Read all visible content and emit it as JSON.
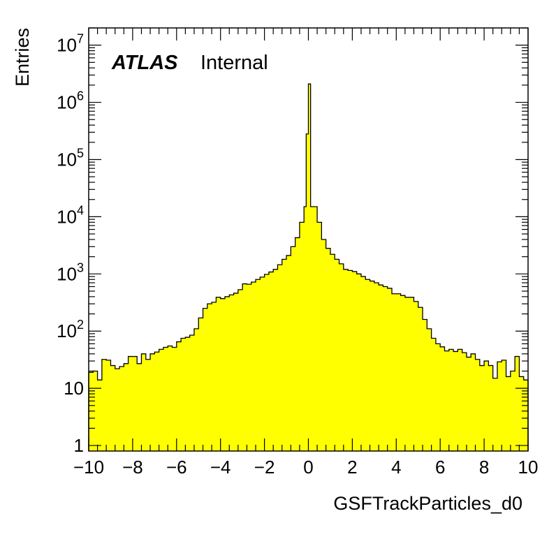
{
  "chart_data": {
    "type": "histogram",
    "title": "",
    "xlabel": "GSFTrackParticles_d0",
    "ylabel": "Entries",
    "xlim": [
      -10,
      10
    ],
    "ylim": [
      0.8,
      20000000
    ],
    "yscale": "log",
    "x_tick_labels": [
      "−10",
      "−8",
      "−6",
      "−4",
      "−2",
      "0",
      "2",
      "4",
      "6",
      "8",
      "10"
    ],
    "y_tick_labels": [
      {
        "value": 1,
        "base": "1",
        "exp": ""
      },
      {
        "value": 10,
        "base": "10",
        "exp": ""
      },
      {
        "value": 100,
        "base": "10",
        "exp": "2"
      },
      {
        "value": 1000,
        "base": "10",
        "exp": "3"
      },
      {
        "value": 10000,
        "base": "10",
        "exp": "4"
      },
      {
        "value": 100000,
        "base": "10",
        "exp": "5"
      },
      {
        "value": 1000000,
        "base": "10",
        "exp": "6"
      },
      {
        "value": 10000000,
        "base": "10",
        "exp": "7"
      }
    ],
    "bin_width": 0.2,
    "fill_color": "#ffff00",
    "line_color": "#000000",
    "grid": false,
    "label": {
      "experiment": "ATLAS",
      "status": "Internal",
      "position": "top-left"
    },
    "bins": [
      {
        "x0": -10.0,
        "y": 19
      },
      {
        "x0": -9.8,
        "y": 20
      },
      {
        "x0": -9.6,
        "y": 14
      },
      {
        "x0": -9.4,
        "y": 32
      },
      {
        "x0": -9.2,
        "y": 31
      },
      {
        "x0": -9.0,
        "y": 25
      },
      {
        "x0": -8.8,
        "y": 22
      },
      {
        "x0": -8.6,
        "y": 24
      },
      {
        "x0": -8.4,
        "y": 27
      },
      {
        "x0": -8.2,
        "y": 36
      },
      {
        "x0": -8.0,
        "y": 36
      },
      {
        "x0": -7.8,
        "y": 27
      },
      {
        "x0": -7.6,
        "y": 40
      },
      {
        "x0": -7.4,
        "y": 32
      },
      {
        "x0": -7.2,
        "y": 40
      },
      {
        "x0": -7.0,
        "y": 43
      },
      {
        "x0": -6.8,
        "y": 48
      },
      {
        "x0": -6.6,
        "y": 52
      },
      {
        "x0": -6.4,
        "y": 55
      },
      {
        "x0": -6.2,
        "y": 52
      },
      {
        "x0": -6.0,
        "y": 65
      },
      {
        "x0": -5.8,
        "y": 75
      },
      {
        "x0": -5.6,
        "y": 78
      },
      {
        "x0": -5.4,
        "y": 85
      },
      {
        "x0": -5.2,
        "y": 110
      },
      {
        "x0": -5.0,
        "y": 170
      },
      {
        "x0": -4.8,
        "y": 250
      },
      {
        "x0": -4.6,
        "y": 300
      },
      {
        "x0": -4.4,
        "y": 320
      },
      {
        "x0": -4.2,
        "y": 390
      },
      {
        "x0": -4.0,
        "y": 370
      },
      {
        "x0": -3.8,
        "y": 400
      },
      {
        "x0": -3.6,
        "y": 430
      },
      {
        "x0": -3.4,
        "y": 460
      },
      {
        "x0": -3.2,
        "y": 530
      },
      {
        "x0": -3.0,
        "y": 670
      },
      {
        "x0": -2.8,
        "y": 660
      },
      {
        "x0": -2.6,
        "y": 720
      },
      {
        "x0": -2.4,
        "y": 800
      },
      {
        "x0": -2.2,
        "y": 880
      },
      {
        "x0": -2.0,
        "y": 980
      },
      {
        "x0": -1.8,
        "y": 1080
      },
      {
        "x0": -1.6,
        "y": 1200
      },
      {
        "x0": -1.4,
        "y": 1450
      },
      {
        "x0": -1.2,
        "y": 1800
      },
      {
        "x0": -1.0,
        "y": 2100
      },
      {
        "x0": -0.8,
        "y": 3000
      },
      {
        "x0": -0.6,
        "y": 4300
      },
      {
        "x0": -0.4,
        "y": 8000
      },
      {
        "x0": -0.2,
        "y": 15000
      },
      {
        "x0": 0.0,
        "y": 280000
      },
      {
        "x0": 0.0,
        "y": 2100000
      },
      {
        "x0": 0.2,
        "y": 15000
      },
      {
        "x0": 0.4,
        "y": 8000
      },
      {
        "x0": 0.6,
        "y": 4000
      },
      {
        "x0": 0.8,
        "y": 2800
      },
      {
        "x0": 1.0,
        "y": 2200
      },
      {
        "x0": 1.2,
        "y": 1800
      },
      {
        "x0": 1.4,
        "y": 1500
      },
      {
        "x0": 1.6,
        "y": 1200
      },
      {
        "x0": 1.8,
        "y": 1150
      },
      {
        "x0": 2.0,
        "y": 1100
      },
      {
        "x0": 2.2,
        "y": 1000
      },
      {
        "x0": 2.4,
        "y": 900
      },
      {
        "x0": 2.6,
        "y": 800
      },
      {
        "x0": 2.8,
        "y": 750
      },
      {
        "x0": 3.0,
        "y": 700
      },
      {
        "x0": 3.2,
        "y": 640
      },
      {
        "x0": 3.4,
        "y": 600
      },
      {
        "x0": 3.6,
        "y": 560
      },
      {
        "x0": 3.8,
        "y": 450
      },
      {
        "x0": 4.0,
        "y": 450
      },
      {
        "x0": 4.2,
        "y": 420
      },
      {
        "x0": 4.4,
        "y": 390
      },
      {
        "x0": 4.6,
        "y": 390
      },
      {
        "x0": 4.8,
        "y": 330
      },
      {
        "x0": 5.0,
        "y": 260
      },
      {
        "x0": 5.2,
        "y": 160
      },
      {
        "x0": 5.4,
        "y": 110
      },
      {
        "x0": 5.6,
        "y": 75
      },
      {
        "x0": 5.8,
        "y": 60
      },
      {
        "x0": 6.0,
        "y": 53
      },
      {
        "x0": 6.2,
        "y": 45
      },
      {
        "x0": 6.4,
        "y": 48
      },
      {
        "x0": 6.6,
        "y": 44
      },
      {
        "x0": 6.8,
        "y": 48
      },
      {
        "x0": 7.0,
        "y": 42
      },
      {
        "x0": 7.2,
        "y": 35
      },
      {
        "x0": 7.4,
        "y": 40
      },
      {
        "x0": 7.6,
        "y": 32
      },
      {
        "x0": 7.8,
        "y": 25
      },
      {
        "x0": 8.0,
        "y": 30
      },
      {
        "x0": 8.2,
        "y": 25
      },
      {
        "x0": 8.4,
        "y": 15
      },
      {
        "x0": 8.6,
        "y": 29
      },
      {
        "x0": 8.8,
        "y": 31
      },
      {
        "x0": 9.0,
        "y": 16
      },
      {
        "x0": 9.2,
        "y": 20
      },
      {
        "x0": 9.4,
        "y": 36
      },
      {
        "x0": 9.6,
        "y": 16
      },
      {
        "x0": 9.8,
        "y": 14
      }
    ]
  }
}
